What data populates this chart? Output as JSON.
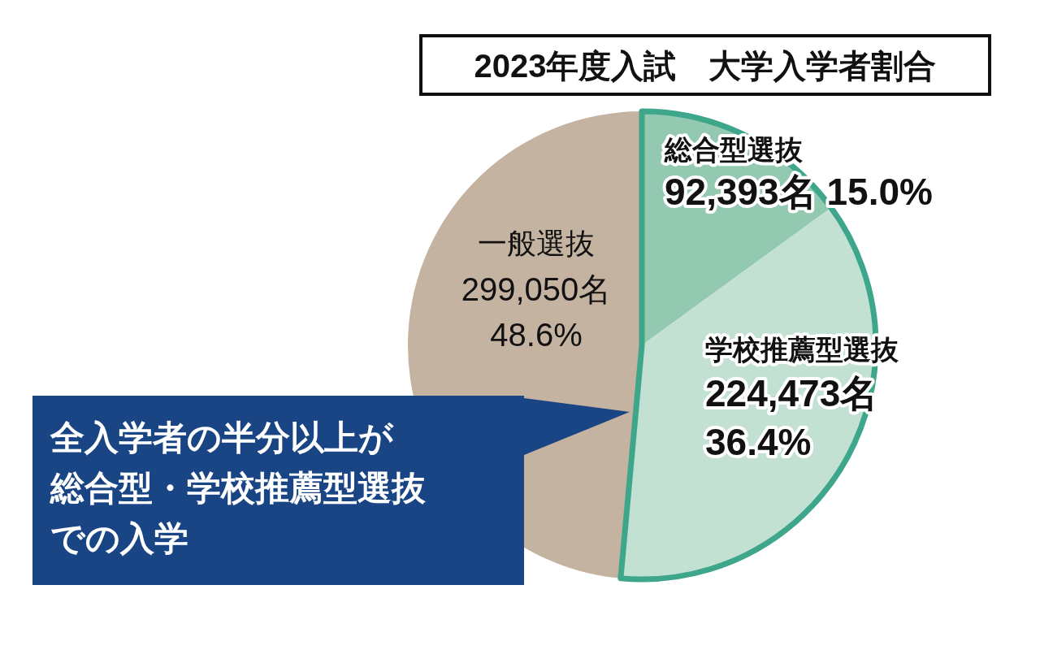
{
  "chart_data": {
    "type": "pie",
    "title": "2023年度入試　大学入学者割合",
    "categories": [
      "総合型選抜",
      "学校推薦型選抜",
      "一般選抜"
    ],
    "values": [
      92393,
      224473,
      299050
    ],
    "value_labels": [
      "92,393名 15.0%",
      "224,473名\n36.4%",
      "299,050名\n48.6%"
    ],
    "colors": [
      "#93c9b1",
      "#c3e1d3",
      "#c5b3a2"
    ],
    "annotations": [
      "全入学者の半分以上が",
      "総合型・学校推薦型選抜",
      "での入学"
    ]
  }
}
